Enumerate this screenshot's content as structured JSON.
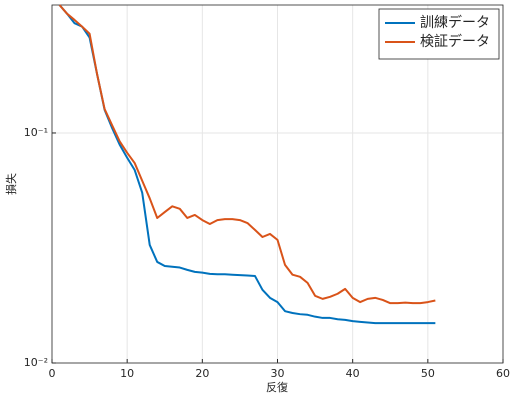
{
  "chart_data": {
    "type": "line",
    "xlabel": "反復",
    "ylabel": "損失",
    "x": [
      1,
      2,
      3,
      4,
      5,
      6,
      7,
      8,
      9,
      10,
      11,
      12,
      13,
      14,
      15,
      16,
      17,
      18,
      19,
      20,
      21,
      22,
      23,
      24,
      25,
      26,
      27,
      28,
      29,
      30,
      31,
      32,
      33,
      34,
      35,
      36,
      37,
      38,
      39,
      40,
      41,
      42,
      43,
      44,
      45,
      46,
      47,
      48,
      49,
      50,
      51
    ],
    "series": [
      {
        "name": "訓練データ",
        "color": "#0072bd",
        "values": [
          0.36,
          0.33,
          0.3,
          0.29,
          0.26,
          0.18,
          0.126,
          0.105,
          0.089,
          0.078,
          0.069,
          0.055,
          0.0326,
          0.0275,
          0.0264,
          0.0262,
          0.026,
          0.0254,
          0.0249,
          0.0247,
          0.0244,
          0.0243,
          0.0243,
          0.0242,
          0.0241,
          0.024,
          0.0239,
          0.0208,
          0.0192,
          0.0184,
          0.0168,
          0.0165,
          0.0163,
          0.0162,
          0.0159,
          0.0157,
          0.0157,
          0.0155,
          0.0154,
          0.0152,
          0.0151,
          0.015,
          0.0149,
          0.0149,
          0.0149,
          0.0149,
          0.0149,
          0.0149,
          0.0149,
          0.0149,
          0.0149
        ]
      },
      {
        "name": "検証データ",
        "color": "#d95319",
        "values": [
          0.36,
          0.33,
          0.31,
          0.29,
          0.27,
          0.18,
          0.127,
          0.108,
          0.092,
          0.082,
          0.074,
          0.062,
          0.052,
          0.0427,
          0.0453,
          0.048,
          0.0468,
          0.0427,
          0.044,
          0.0418,
          0.0402,
          0.0418,
          0.0422,
          0.0422,
          0.0418,
          0.0406,
          0.0379,
          0.0353,
          0.0364,
          0.0343,
          0.0267,
          0.0242,
          0.0237,
          0.0223,
          0.0196,
          0.019,
          0.0194,
          0.02,
          0.021,
          0.0192,
          0.0184,
          0.019,
          0.0192,
          0.0188,
          0.0182,
          0.0182,
          0.0183,
          0.0182,
          0.0182,
          0.0184,
          0.0187
        ]
      }
    ],
    "xlim": [
      0,
      60
    ],
    "xticks": [
      0,
      10,
      20,
      30,
      40,
      50,
      60
    ],
    "ylim": [
      0.01,
      0.36
    ],
    "yticks": [
      {
        "value": 0.01,
        "label": "10⁻²"
      },
      {
        "value": 0.1,
        "label": "10⁻¹"
      }
    ],
    "ylog": true,
    "grid": true,
    "legend": "top-right"
  }
}
